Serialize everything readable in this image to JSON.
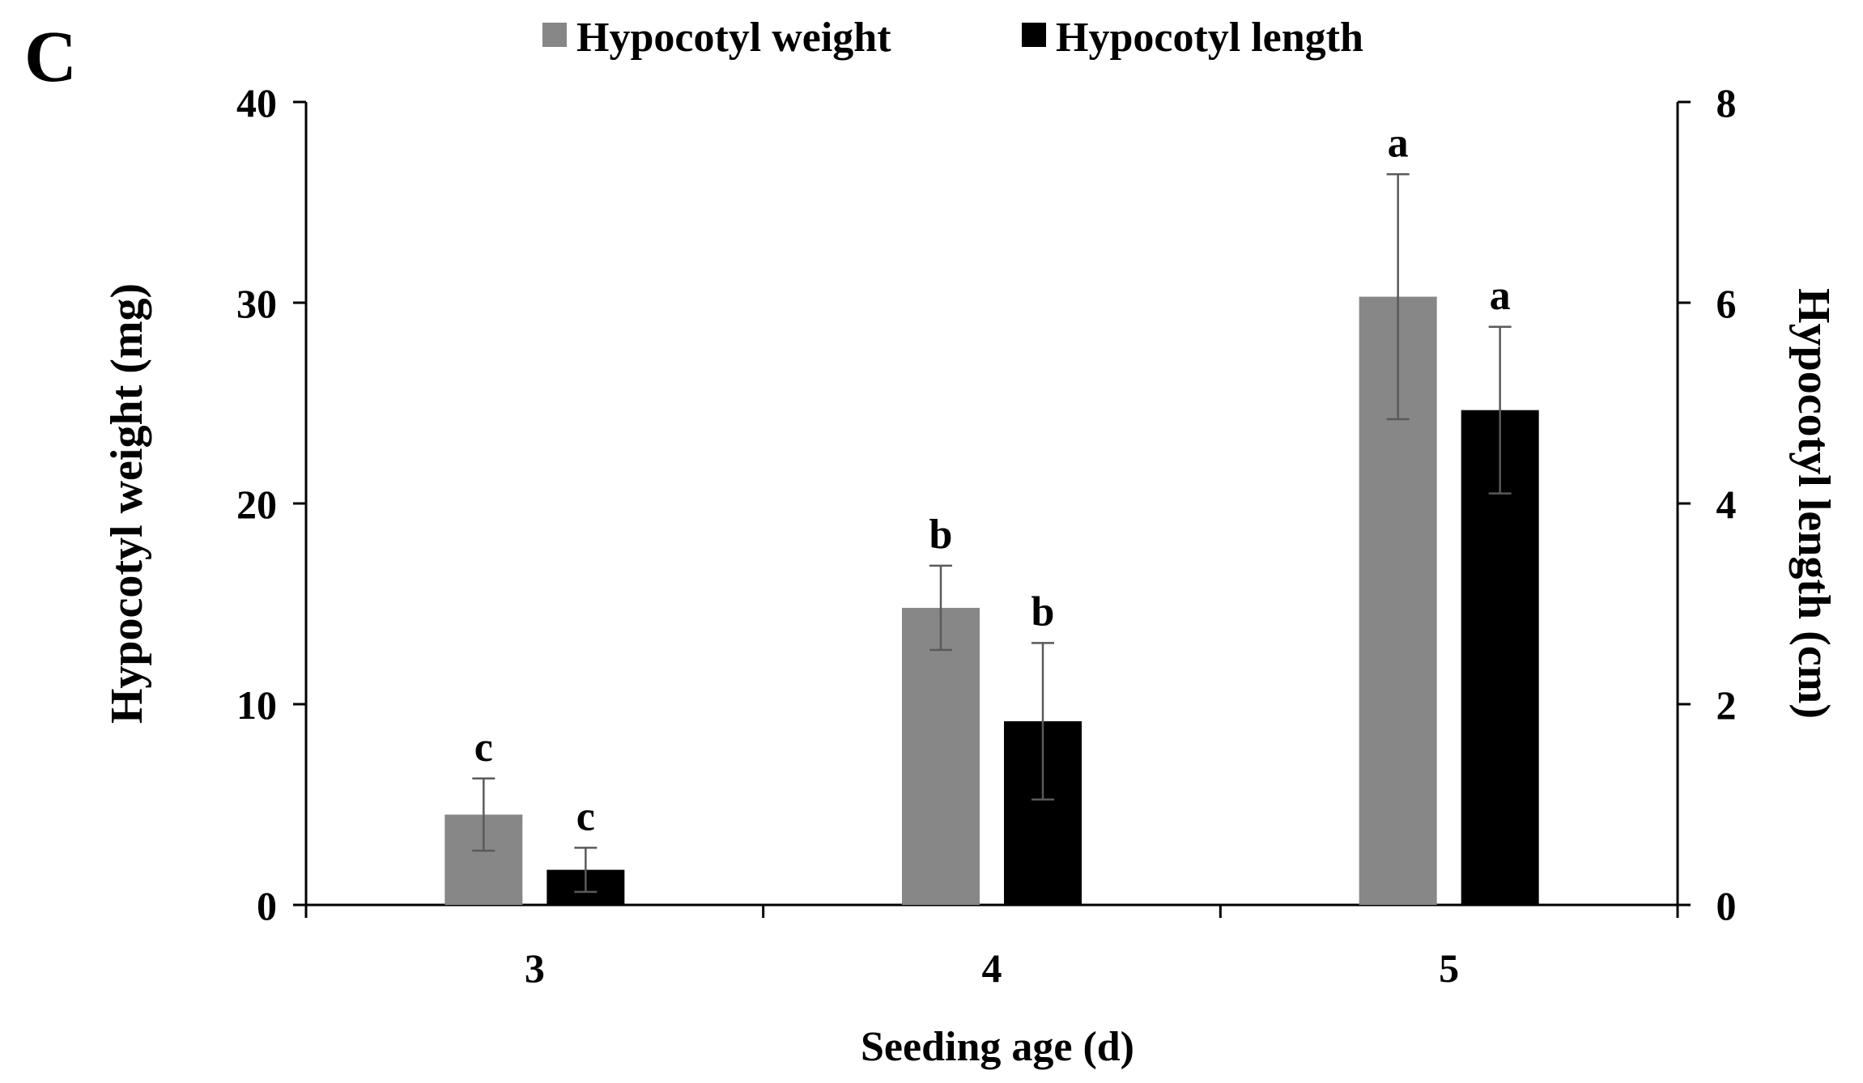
{
  "panel_label": "C",
  "chart_data": {
    "type": "bar",
    "title": "",
    "categories": [
      "3",
      "4",
      "5"
    ],
    "xlabel": "Seeding age (d)",
    "series": [
      {
        "name": "Hypocotyl weight",
        "axis": "left",
        "color": "#878787",
        "values": [
          4.5,
          14.8,
          30.3
        ],
        "errors": [
          1.8,
          2.1,
          6.1
        ],
        "letters": [
          "c",
          "b",
          "a"
        ]
      },
      {
        "name": "Hypocotyl length",
        "axis": "right",
        "color": "#000000",
        "values": [
          0.35,
          1.83,
          4.93
        ],
        "errors": [
          0.22,
          0.78,
          0.83
        ],
        "letters": [
          "c",
          "b",
          "a"
        ]
      }
    ],
    "y_left": {
      "label": "Hypocotyl  weight (mg)",
      "ylim": [
        0,
        40
      ],
      "ticks": [
        0,
        10,
        20,
        30,
        40
      ]
    },
    "y_right": {
      "label": "Hypocotyl length (cm)",
      "ylim": [
        0,
        8
      ],
      "ticks": [
        0,
        2,
        4,
        6,
        8
      ]
    },
    "legend_position": "top-center",
    "grid": false
  }
}
